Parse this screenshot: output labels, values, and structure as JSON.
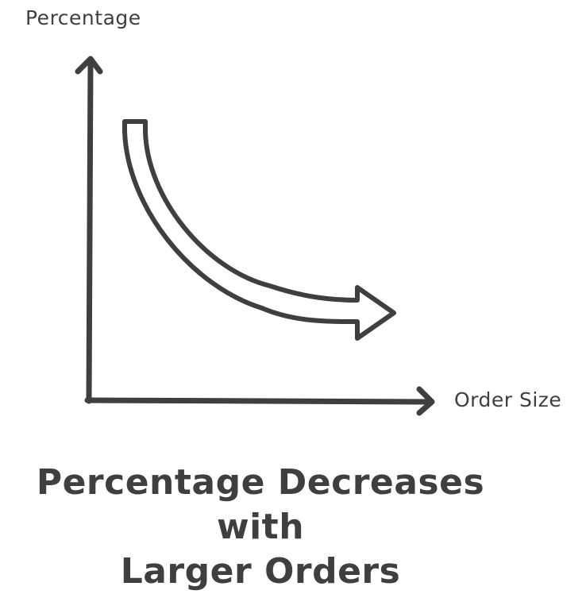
{
  "diagram": {
    "y_axis_label": "Percentage",
    "x_axis_label": "Order Size",
    "caption_line1": "Percentage Decreases with",
    "caption_line2": "Larger Orders",
    "trend": "decreasing",
    "stroke_color": "#3f3f3f"
  }
}
